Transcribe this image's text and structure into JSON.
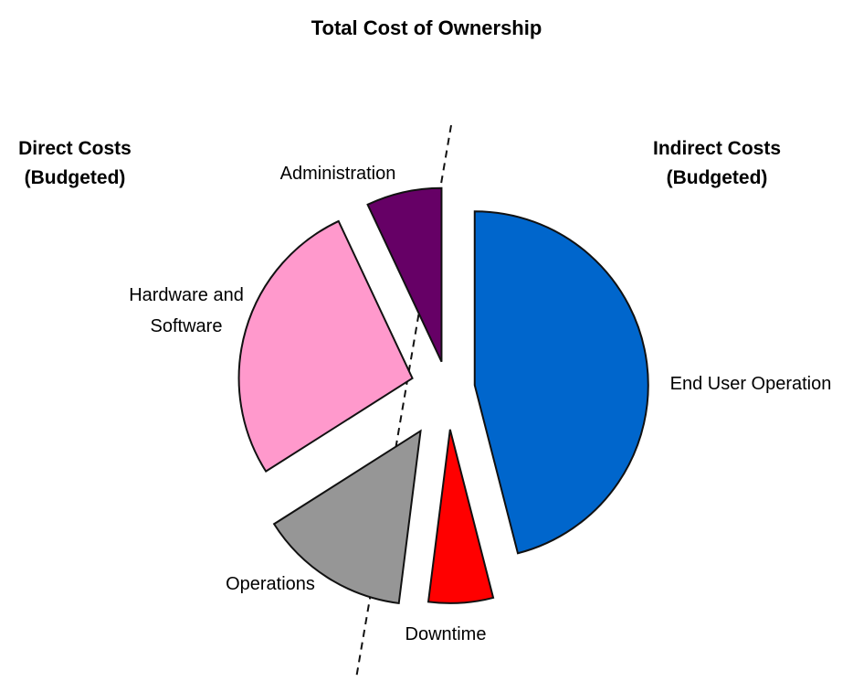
{
  "chart_data": {
    "type": "pie",
    "title": "Total Cost of Ownership",
    "groups": [
      {
        "name_lines": [
          "Direct Costs",
          "(Budgeted)"
        ]
      },
      {
        "name_lines": [
          "Indirect Costs",
          "(Budgeted)"
        ]
      }
    ],
    "slices": [
      {
        "label_lines": [
          "End User Operation"
        ],
        "value": 46,
        "color": "#0066CC",
        "group": "Indirect Costs"
      },
      {
        "label_lines": [
          "Downtime"
        ],
        "value": 6,
        "color": "#FF0000",
        "group": "Indirect Costs"
      },
      {
        "label_lines": [
          "Operations"
        ],
        "value": 14,
        "color": "#969696",
        "group": "Direct Costs"
      },
      {
        "label_lines": [
          "Hardware and",
          "Software"
        ],
        "value": 27,
        "color": "#FF99CC",
        "group": "Direct Costs"
      },
      {
        "label_lines": [
          "Administration"
        ],
        "value": 7,
        "color": "#660066",
        "group": "Direct Costs"
      }
    ],
    "exploded": true,
    "divider": "dashed",
    "legend": "none"
  }
}
